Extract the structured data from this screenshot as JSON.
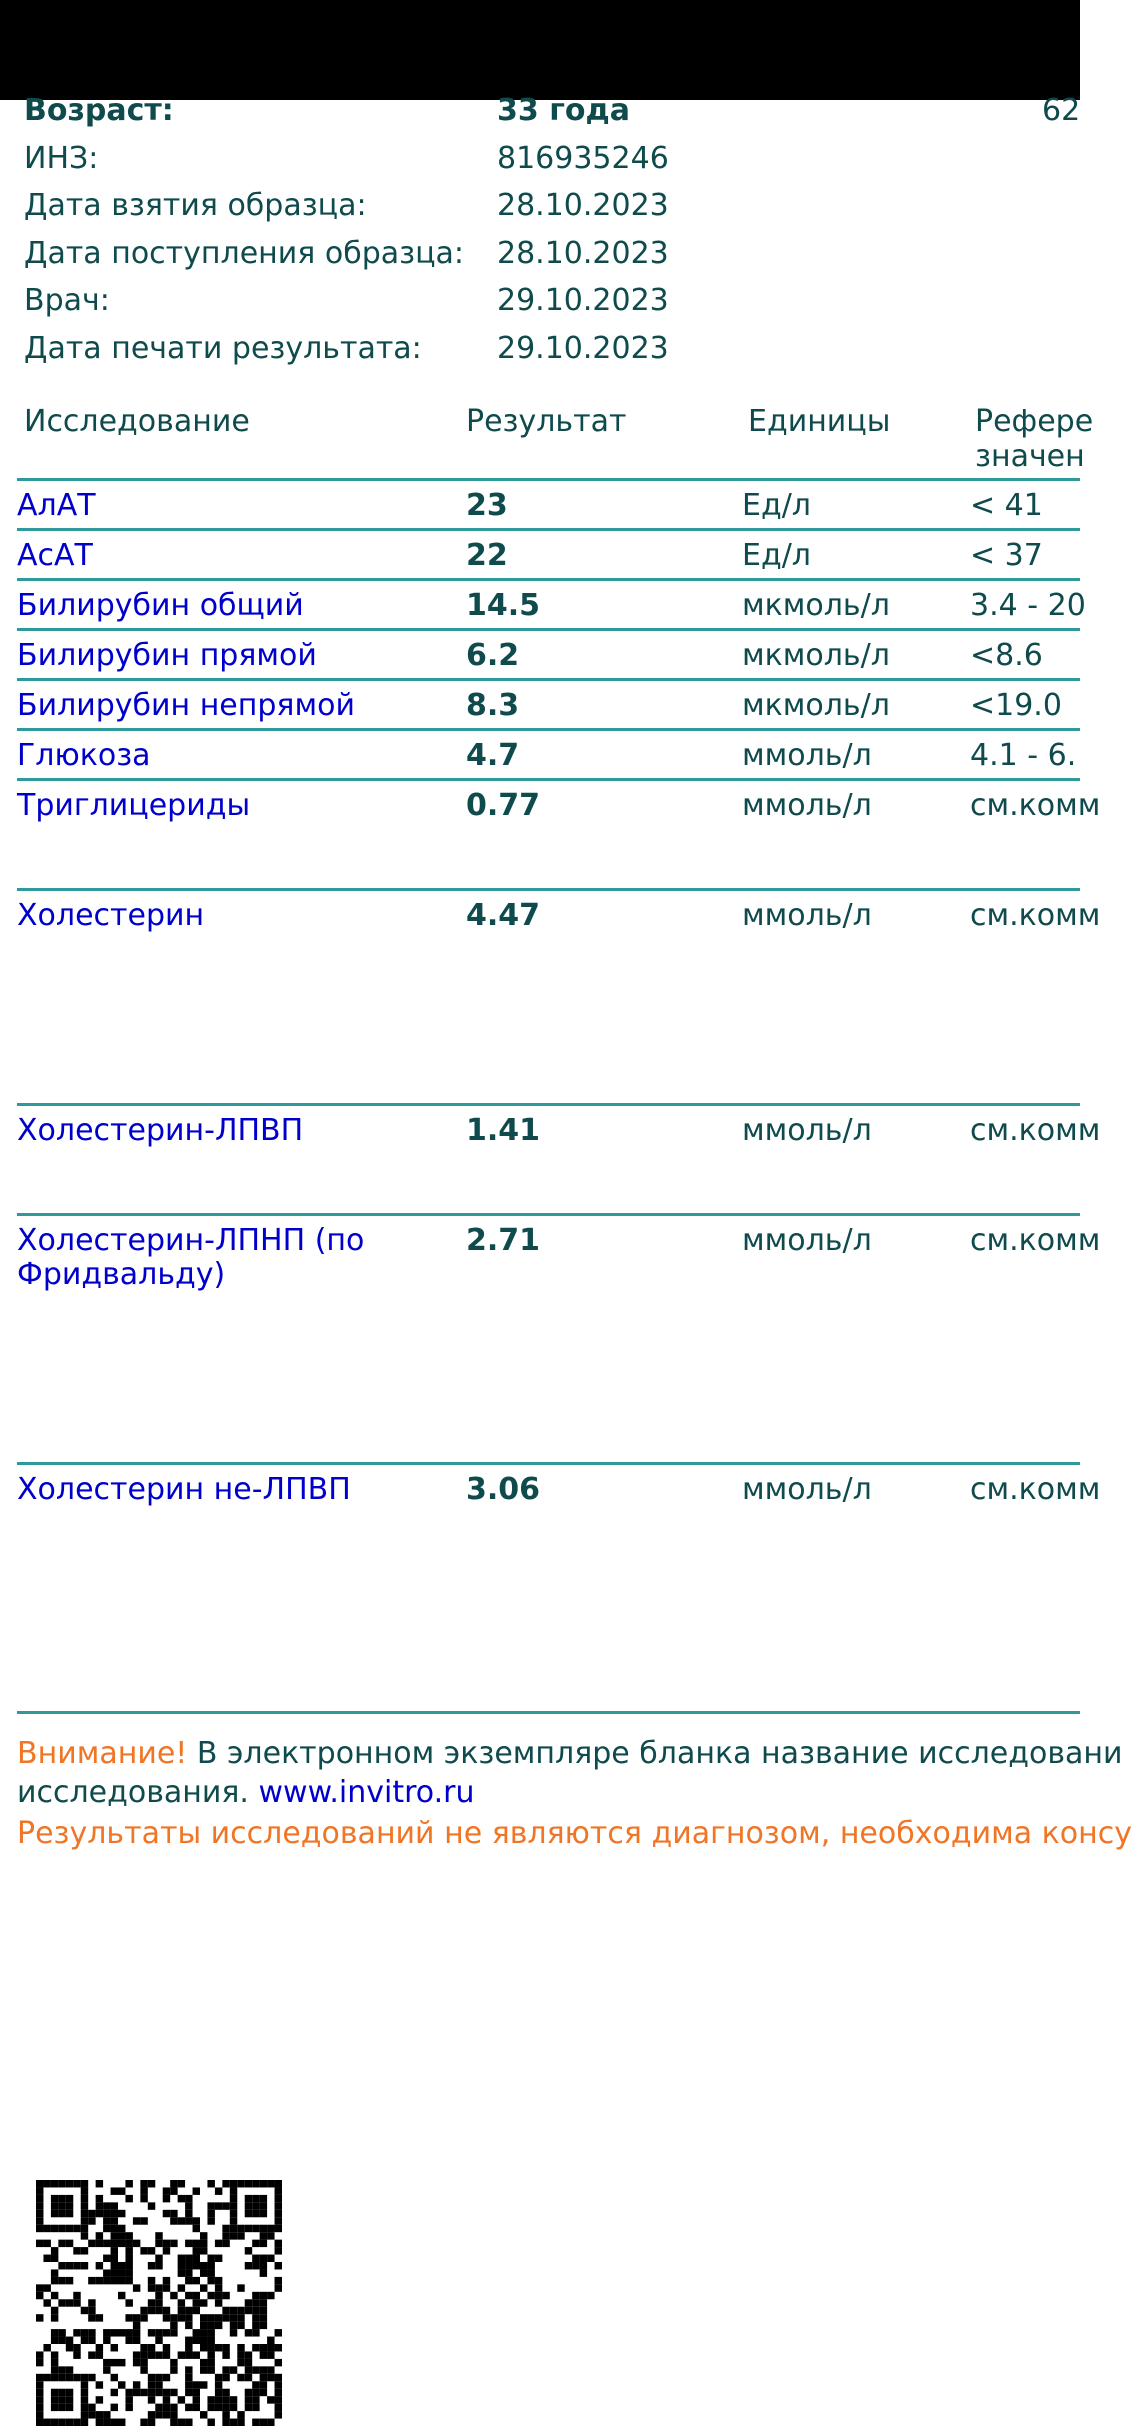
{
  "patient": {
    "fields": [
      {
        "label": "Возраст:",
        "value": "33 года",
        "bold": true
      },
      {
        "label": "ИНЗ:",
        "value": "816935246"
      },
      {
        "label": "Дата взятия образца:",
        "value": "28.10.2023"
      },
      {
        "label": "Дата поступления образца:",
        "value": "28.10.2023"
      },
      {
        "label": "Врач:",
        "value": "29.10.2023"
      },
      {
        "label": "Дата печати результата:",
        "value": "29.10.2023"
      }
    ],
    "cut_right_text": "62"
  },
  "table": {
    "headers": {
      "test": "Исследование",
      "result": "Результат",
      "units": "Единицы",
      "ref_line1": "Рефере",
      "ref_line2": "значен"
    },
    "rows": [
      {
        "name": "АлАТ",
        "result": "23",
        "units": "Ед/л",
        "ref": "< 41"
      },
      {
        "name": "АсАТ",
        "result": "22",
        "units": "Ед/л",
        "ref": "< 37"
      },
      {
        "name": "Билирубин общий",
        "result": "14.5",
        "units": "мкмоль/л",
        "ref": "3.4 - 20"
      },
      {
        "name": "Билирубин прямой",
        "result": "6.2",
        "units": "мкмоль/л",
        "ref": "<8.6"
      },
      {
        "name": "Билирубин непрямой",
        "result": "8.3",
        "units": "мкмоль/л",
        "ref": "<19.0"
      },
      {
        "name": "Глюкоза",
        "result": "4.7",
        "units": "ммоль/л",
        "ref": "4.1 - 6."
      },
      {
        "name": "Триглицериды",
        "result": "0.77",
        "units": "ммоль/л",
        "ref": "см.комм"
      },
      {
        "name": "Холестерин",
        "result": "4.47",
        "units": "ммоль/л",
        "ref": "см.комм"
      },
      {
        "name": "Холестерин-ЛПВП",
        "result": "1.41",
        "units": "ммоль/л",
        "ref": "см.комм"
      },
      {
        "name": "Холестерин-ЛПНП (по",
        "name_line2": "Фридвальду)",
        "result": "2.71",
        "units": "ммоль/л",
        "ref": "см.комм"
      },
      {
        "name": "Холестерин не-ЛПВП",
        "result": "3.06",
        "units": "ммоль/л",
        "ref": "см.комм"
      }
    ]
  },
  "footer": {
    "warning_label": "Внимание!",
    "warning_text": " В электронном экземпляре бланка название исследовани",
    "line2_text": "исследования. ",
    "link": "www.invitro.ru",
    "disclaimer": "Результаты исследований не являются диагнозом, необходима консу"
  },
  "colors": {
    "text": "#0f4a4c",
    "link": "#0000cc",
    "accent": "#f07524",
    "rule": "#2e9a9b"
  },
  "qr_code": "qr-code-icon"
}
